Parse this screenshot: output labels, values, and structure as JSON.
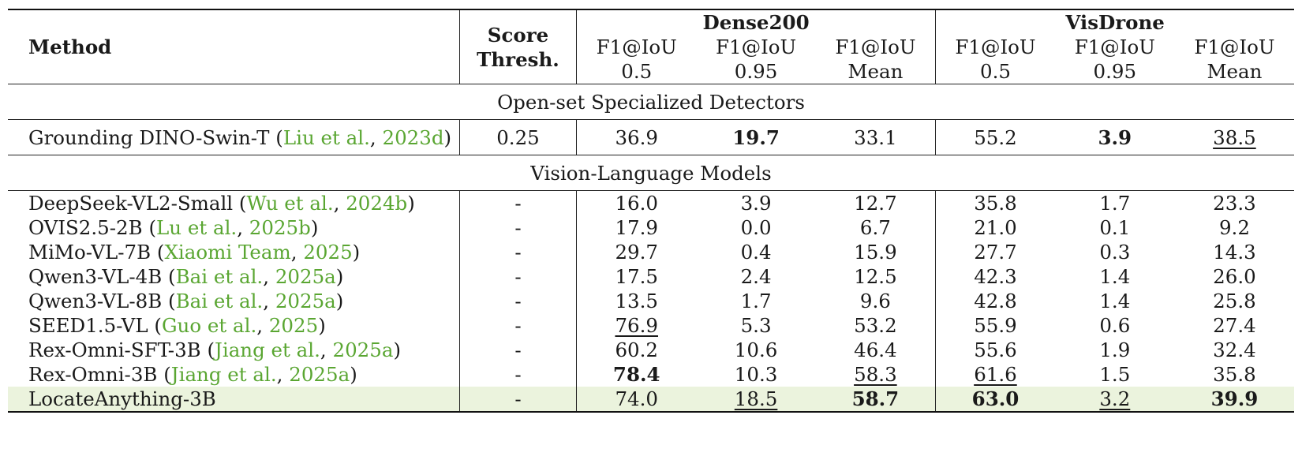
{
  "header": {
    "method": "Method",
    "score_thresh": [
      "Score",
      "Thresh."
    ],
    "groups": [
      "Dense200",
      "VisDrone"
    ],
    "metric_line1": "F1@IoU",
    "metric_line2": [
      "0.5",
      "0.95",
      "Mean",
      "0.5",
      "0.95",
      "Mean"
    ]
  },
  "sections": [
    {
      "title": "Open-set Specialized Detectors",
      "rows": [
        {
          "name": "Grounding DINO-Swin-T",
          "cite_author": "Liu et al.",
          "cite_year": "2023d",
          "thresh": "0.25",
          "values": [
            "36.9",
            "19.7",
            "33.1",
            "55.2",
            "3.9",
            "38.5"
          ],
          "bold": [
            false,
            true,
            false,
            false,
            true,
            false
          ],
          "underline": [
            false,
            false,
            false,
            false,
            false,
            true
          ],
          "highlight": false
        }
      ]
    },
    {
      "title": "Vision-Language Models",
      "rows": [
        {
          "name": "DeepSeek-VL2-Small",
          "cite_author": "Wu et al.",
          "cite_year": "2024b",
          "thresh": "-",
          "values": [
            "16.0",
            "3.9",
            "12.7",
            "35.8",
            "1.7",
            "23.3"
          ],
          "bold": [
            false,
            false,
            false,
            false,
            false,
            false
          ],
          "underline": [
            false,
            false,
            false,
            false,
            false,
            false
          ],
          "highlight": false
        },
        {
          "name": "OVIS2.5-2B",
          "cite_author": "Lu et al.",
          "cite_year": "2025b",
          "thresh": "-",
          "values": [
            "17.9",
            "0.0",
            "6.7",
            "21.0",
            "0.1",
            "9.2"
          ],
          "bold": [
            false,
            false,
            false,
            false,
            false,
            false
          ],
          "underline": [
            false,
            false,
            false,
            false,
            false,
            false
          ],
          "highlight": false
        },
        {
          "name": "MiMo-VL-7B",
          "cite_author": "Xiaomi Team",
          "cite_year": "2025",
          "thresh": "-",
          "values": [
            "29.7",
            "0.4",
            "15.9",
            "27.7",
            "0.3",
            "14.3"
          ],
          "bold": [
            false,
            false,
            false,
            false,
            false,
            false
          ],
          "underline": [
            false,
            false,
            false,
            false,
            false,
            false
          ],
          "highlight": false
        },
        {
          "name": "Qwen3-VL-4B",
          "cite_author": "Bai et al.",
          "cite_year": "2025a",
          "thresh": "-",
          "values": [
            "17.5",
            "2.4",
            "12.5",
            "42.3",
            "1.4",
            "26.0"
          ],
          "bold": [
            false,
            false,
            false,
            false,
            false,
            false
          ],
          "underline": [
            false,
            false,
            false,
            false,
            false,
            false
          ],
          "highlight": false
        },
        {
          "name": "Qwen3-VL-8B",
          "cite_author": "Bai et al.",
          "cite_year": "2025a",
          "thresh": "-",
          "values": [
            "13.5",
            "1.7",
            "9.6",
            "42.8",
            "1.4",
            "25.8"
          ],
          "bold": [
            false,
            false,
            false,
            false,
            false,
            false
          ],
          "underline": [
            false,
            false,
            false,
            false,
            false,
            false
          ],
          "highlight": false
        },
        {
          "name": "SEED1.5-VL",
          "cite_author": "Guo et al.",
          "cite_year": "2025",
          "thresh": "-",
          "values": [
            "76.9",
            "5.3",
            "53.2",
            "55.9",
            "0.6",
            "27.4"
          ],
          "bold": [
            false,
            false,
            false,
            false,
            false,
            false
          ],
          "underline": [
            true,
            false,
            false,
            false,
            false,
            false
          ],
          "highlight": false
        },
        {
          "name": "Rex-Omni-SFT-3B",
          "cite_author": "Jiang et al.",
          "cite_year": "2025a",
          "thresh": "-",
          "values": [
            "60.2",
            "10.6",
            "46.4",
            "55.6",
            "1.9",
            "32.4"
          ],
          "bold": [
            false,
            false,
            false,
            false,
            false,
            false
          ],
          "underline": [
            false,
            false,
            false,
            false,
            false,
            false
          ],
          "highlight": false
        },
        {
          "name": "Rex-Omni-3B",
          "cite_author": "Jiang et al.",
          "cite_year": "2025a",
          "thresh": "-",
          "values": [
            "78.4",
            "10.3",
            "58.3",
            "61.6",
            "1.5",
            "35.8"
          ],
          "bold": [
            true,
            false,
            false,
            false,
            false,
            false
          ],
          "underline": [
            false,
            false,
            true,
            true,
            false,
            false
          ],
          "highlight": false
        },
        {
          "name": "LocateAnything-3B",
          "cite_author": "",
          "cite_year": "",
          "thresh": "-",
          "values": [
            "74.0",
            "18.5",
            "58.7",
            "63.0",
            "3.2",
            "39.9"
          ],
          "bold": [
            false,
            false,
            true,
            true,
            false,
            true
          ],
          "underline": [
            false,
            true,
            false,
            false,
            true,
            false
          ],
          "highlight": true
        }
      ]
    }
  ]
}
